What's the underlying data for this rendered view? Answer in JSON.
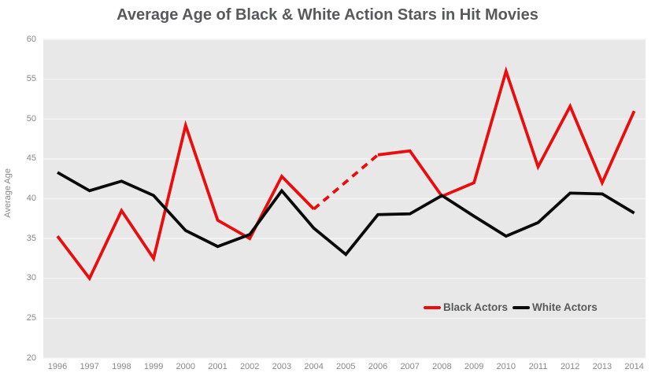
{
  "colors": {
    "title_text": "#58595b",
    "axis_text": "#87888a",
    "plot_background": "#e8e8e8",
    "gridline": "#f4f4f4",
    "black_actors_line": "#e90d0d",
    "white_actors_line": "#0a0a0a",
    "legend_text": "#58595b"
  },
  "chart_data": {
    "type": "line",
    "title": "Average Age of Black & White Action Stars in Hit Movies",
    "xlabel": "",
    "ylabel": "Average Age",
    "x": [
      1996,
      1997,
      1998,
      1999,
      2000,
      2001,
      2002,
      2003,
      2004,
      2005,
      2006,
      2007,
      2008,
      2009,
      2010,
      2011,
      2012,
      2013,
      2014
    ],
    "ylim": [
      20,
      60
    ],
    "yticks": [
      20,
      25,
      30,
      35,
      40,
      45,
      50,
      55,
      60
    ],
    "grid": true,
    "legend_position": "inside-bottom-right",
    "series": [
      {
        "name": "Black Actors",
        "color": "#e90d0d",
        "note": "gap at 2005 rendered as dashed straight interpolation between 2004 and 2006",
        "values": [
          35.3,
          30,
          38.5,
          32.5,
          49.2,
          37.3,
          35,
          42.8,
          38.7,
          null,
          45.5,
          46,
          40.3,
          42,
          56,
          44,
          51.6,
          42,
          51
        ]
      },
      {
        "name": "White Actors",
        "color": "#0a0a0a",
        "values": [
          43.3,
          41,
          42.2,
          40.4,
          36,
          34,
          35.5,
          41,
          36.3,
          33,
          38,
          38.1,
          40.4,
          37.8,
          35.3,
          37,
          40.7,
          40.6,
          38.2
        ]
      }
    ]
  }
}
